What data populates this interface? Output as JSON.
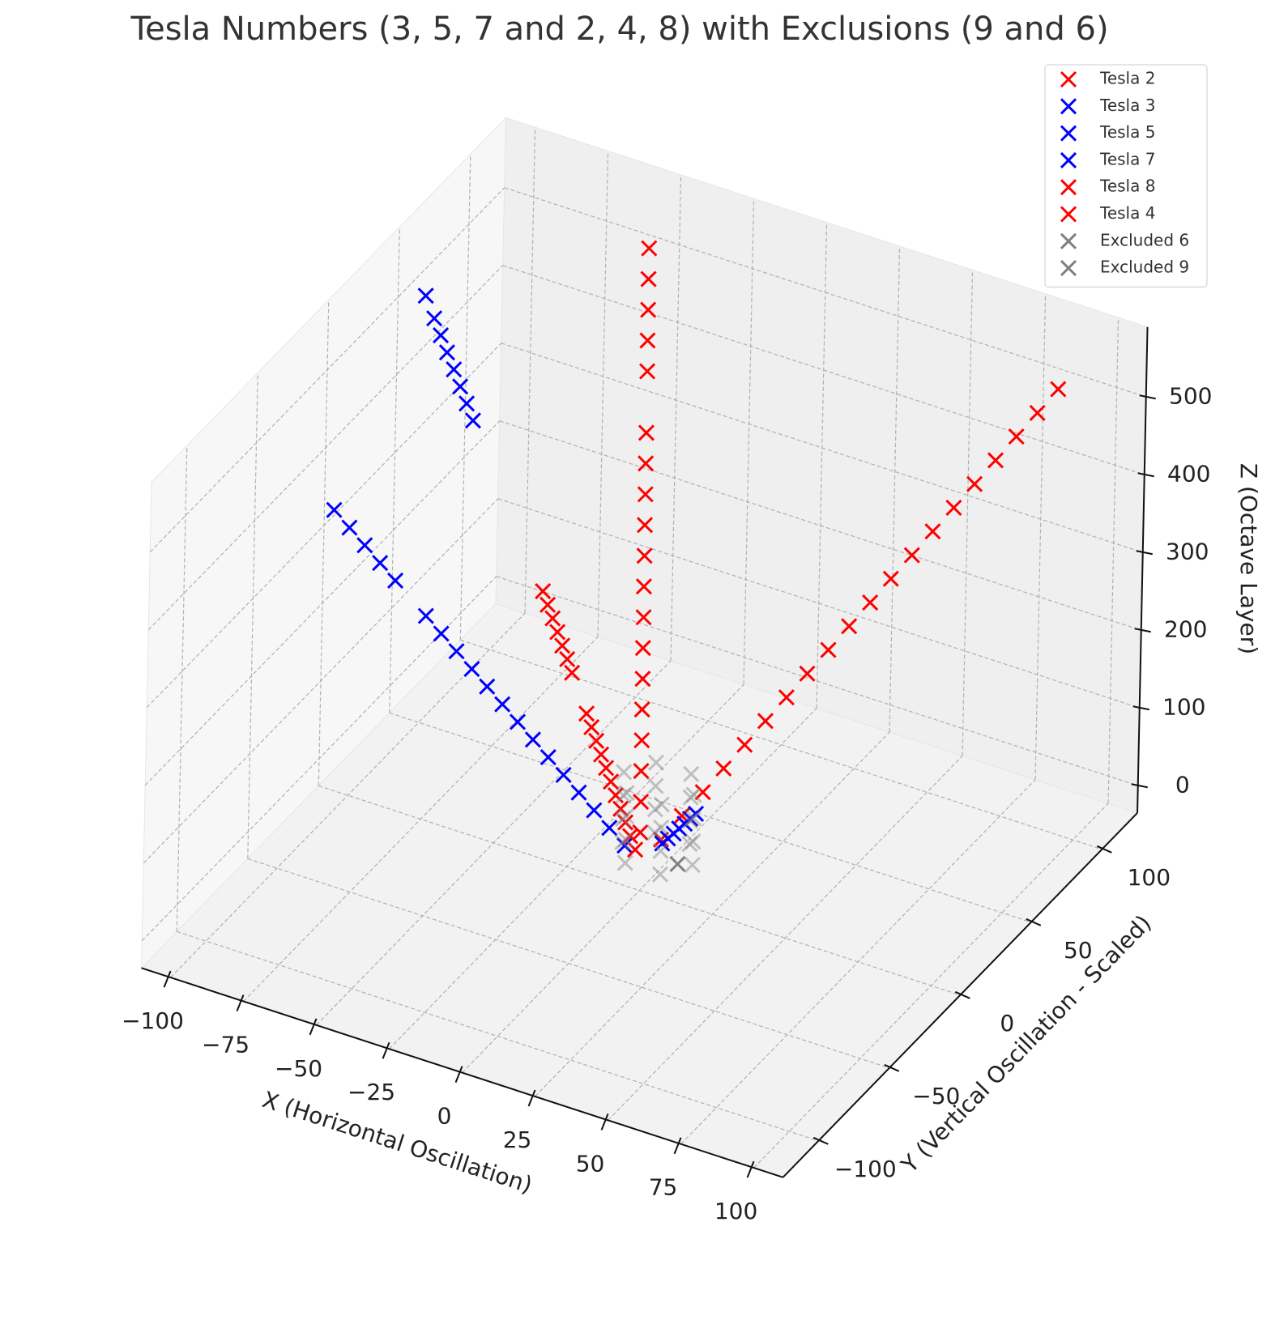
{
  "chart_data": {
    "type": "scatter3d",
    "title": "Tesla Numbers (3, 5, 7 and 2, 4, 8) with Exclusions (9 and 6)",
    "xlabel": "X (Horizontal Oscillation)",
    "ylabel": "Y (Vertical Oscillation - Scaled)",
    "zlabel": "Z (Octave Layer)",
    "xlim": [
      -110,
      110
    ],
    "ylim": [
      -125,
      125
    ],
    "zlim": [
      -35,
      590
    ],
    "xticks": [
      {
        "value": -100,
        "label": "−100"
      },
      {
        "value": -75,
        "label": "−75"
      },
      {
        "value": -50,
        "label": "−50"
      },
      {
        "value": -25,
        "label": "−25"
      },
      0,
      25,
      50,
      75,
      100
    ],
    "yticks": [
      {
        "value": -100,
        "label": "−100"
      },
      {
        "value": -50,
        "label": "−50"
      },
      0,
      50,
      100
    ],
    "zticks": [
      0,
      100,
      200,
      300,
      400,
      500
    ],
    "grid": true,
    "legend": "upper right",
    "marker": "x",
    "series": [
      {
        "name": "Tesla 2",
        "color": "#ff0000",
        "alpha": 1,
        "x": [
          4.5,
          8.9,
          13.4,
          17.8,
          22.3,
          26.7,
          31.2,
          35.6,
          40.1,
          44.5,
          49,
          53.4,
          57.9,
          62.3,
          66.8,
          71.2,
          75.7,
          80.1,
          84.6,
          89
        ],
        "y": [
          5.3,
          10.6,
          15.9,
          21.2,
          26.5,
          31.8,
          37.1,
          42.4,
          47.7,
          53,
          58.3,
          63.6,
          68.9,
          74.2,
          79.5,
          84.8,
          90.1,
          95.4,
          100.7,
          106
        ],
        "z": [
          26,
          52,
          78,
          104,
          130,
          156,
          182,
          208,
          234,
          260,
          286,
          312,
          338,
          364,
          390,
          416,
          442,
          468,
          494,
          520
        ]
      },
      {
        "name": "Tesla 3",
        "color": "#0000ff",
        "alpha": 1,
        "x": [
          -4.6,
          -9.2,
          -13.8,
          -18.4,
          -23,
          -27.6,
          -32.2,
          -36.8,
          -41.4,
          -46,
          -50.6,
          -55.2,
          -59.8,
          -64.4,
          -73.6,
          -78.2,
          -82.8,
          -87.4,
          -92
        ],
        "y": [
          -1.55,
          -3.1,
          -4.65,
          -6.2,
          -7.75,
          -9.3,
          -10.85,
          -12.4,
          -13.95,
          -15.5,
          -17.05,
          -18.6,
          -20.15,
          -21.7,
          -24.8,
          -26.35,
          -27.9,
          -29.45,
          -31
        ],
        "z": [
          20,
          40,
          60,
          80,
          100,
          120,
          140,
          160,
          180,
          200,
          220,
          240,
          260,
          280,
          320,
          340,
          360,
          380,
          400
        ]
      },
      {
        "name": "Tesla 5",
        "color": "#0000ff",
        "alpha": 1,
        "x": [
          -72.9,
          -75.7,
          -78.5,
          -81.3,
          -84.2,
          -87,
          -89.8,
          -93.5
        ],
        "y": [
          27.3,
          28.4,
          29.4,
          30.5,
          31.5,
          32.6,
          33.6,
          35
        ],
        "z": [
          429,
          445.5,
          462,
          478.5,
          495,
          511.5,
          528,
          550
        ]
      },
      {
        "name": "Tesla 7",
        "color": "#0000ff",
        "alpha": 1,
        "x": [
          5.4,
          6.8,
          8.2,
          9.5,
          10.9,
          12.2,
          13.6
        ],
        "y": [
          4.3,
          5.4,
          6.5,
          7.6,
          8.6,
          9.7,
          10.8
        ],
        "z": [
          24,
          30,
          36,
          42,
          48,
          54,
          60
        ]
      },
      {
        "name": "Tesla 8",
        "color": "#ff0000",
        "alpha": 1,
        "x": [
          -2.9,
          -5.7,
          -8.6,
          -11.4,
          -14.3,
          -17.1,
          -20,
          -22.8,
          -25.7,
          -28.5,
          -31.4,
          -34.2,
          -37.1,
          -39.9,
          -45.6,
          -48.5,
          -51.3,
          -54.2,
          -57
        ],
        "y": [
          5.9,
          11.8,
          17.7,
          23.6,
          29.5,
          35.4,
          41.3,
          47.2,
          53.1,
          59,
          64.9,
          70.8,
          76.7,
          82.6,
          94.4,
          100.3,
          106.2,
          112.1,
          118
        ],
        "z": [
          25,
          50,
          75,
          100,
          125,
          150,
          175,
          200,
          225,
          250,
          275,
          300,
          325,
          350,
          400,
          425,
          450,
          475,
          500
        ]
      },
      {
        "name": "Tesla 4",
        "color": "#ff0000",
        "alpha": 1,
        "x": [
          -2.3,
          -4.6,
          -6.9,
          -9.2,
          -11.5,
          -13.8,
          -16.1,
          -18.4,
          -20.7,
          -23,
          -25.3,
          -32.2,
          -34.5,
          -36.8,
          -39.1,
          -41.4,
          -43.7,
          -46
        ],
        "y": [
          1.2,
          2.3,
          3.5,
          4.7,
          5.8,
          7,
          8.2,
          9.3,
          10.5,
          11.7,
          12.8,
          16.3,
          17.5,
          18.6,
          19.8,
          21,
          22.1,
          23.3
        ],
        "z": [
          12.5,
          25,
          37.5,
          50,
          62.5,
          75,
          87.5,
          100,
          112.5,
          125,
          137.5,
          175,
          187.5,
          200,
          212.5,
          225,
          237.5,
          250
        ]
      },
      {
        "name": "Excluded 6",
        "color": "#808080",
        "alpha": 0.45,
        "x": [
          16,
          10,
          -2,
          -8,
          -2,
          10,
          16,
          10,
          -2,
          -8,
          -2,
          10,
          16,
          10,
          -2,
          -8,
          -2,
          10,
          16,
          10,
          -2,
          -8,
          -2,
          10
        ],
        "y": [
          4,
          14.4,
          14.4,
          4,
          -6.4,
          -6.4,
          4,
          14.4,
          14.4,
          4,
          -6.4,
          -6.4,
          4,
          14.4,
          14.4,
          4,
          -6.4,
          -6.4,
          4,
          14.4,
          14.4,
          4,
          -6.4,
          -6.4
        ],
        "z": [
          10,
          10,
          10,
          10,
          10,
          10,
          40,
          40,
          40,
          40,
          40,
          40,
          70,
          70,
          70,
          70,
          70,
          70,
          100,
          100,
          100,
          100,
          100,
          100
        ]
      },
      {
        "name": "Excluded 9",
        "color": "#808080",
        "alpha": 1,
        "x": [
          10
        ],
        "y": [
          6
        ],
        "z": [
          0
        ]
      }
    ]
  }
}
